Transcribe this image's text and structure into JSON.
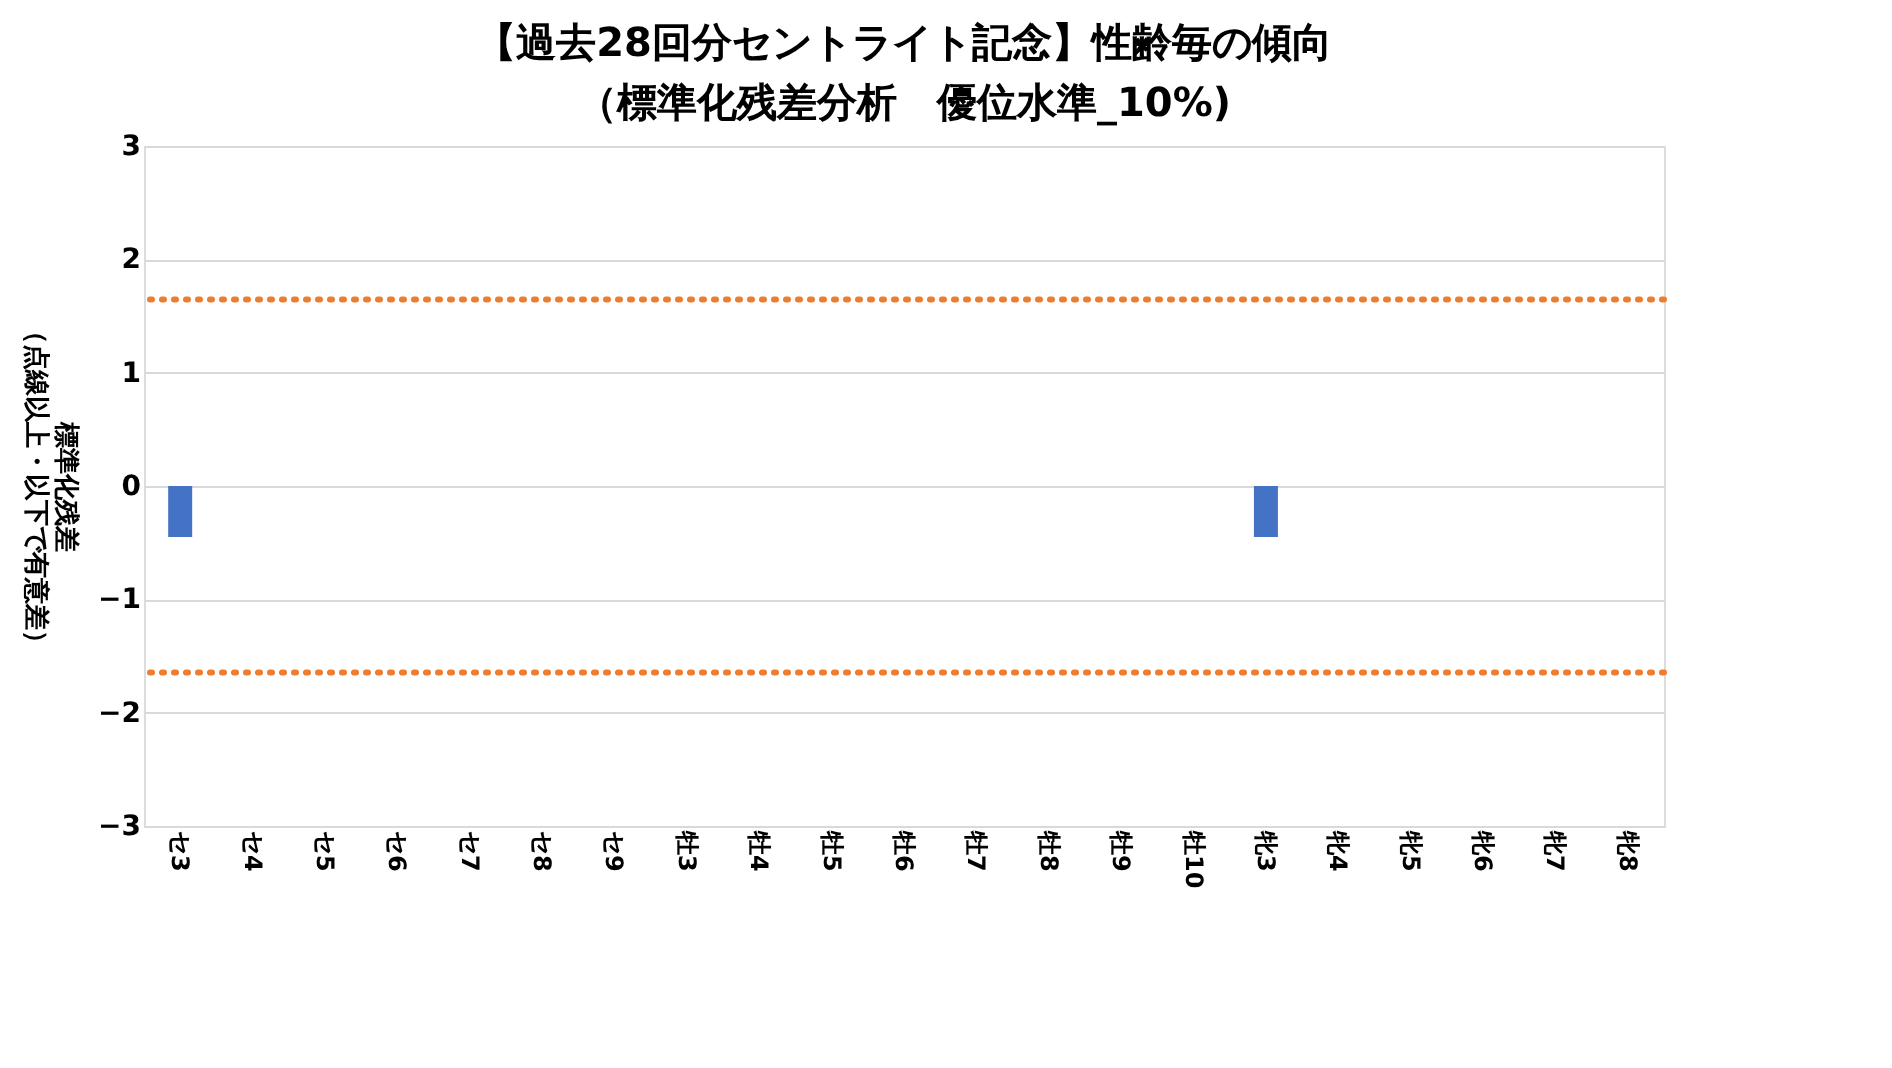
{
  "chart_data": {
    "type": "bar",
    "title": "【過去28回分セントライト記念】性齢毎の傾向",
    "subtitle": "（標準化残差分析　優位水準_10%)",
    "ylabel": "標準化残差（点線以上・以下で有意差）",
    "categories": [
      "セ3",
      "セ4",
      "セ5",
      "セ6",
      "セ7",
      "セ8",
      "セ9",
      "牡3",
      "牡4",
      "牡5",
      "牡6",
      "牡7",
      "牡8",
      "牡9",
      "牡10",
      "牝3",
      "牝4",
      "牝5",
      "牝6",
      "牝7",
      "牝8"
    ],
    "values": [
      -0.45,
      null,
      null,
      null,
      null,
      null,
      null,
      null,
      null,
      null,
      null,
      null,
      null,
      null,
      null,
      -0.45,
      null,
      null,
      null,
      null,
      null
    ],
    "color": "#4472c4",
    "ylim": [
      -3,
      3
    ],
    "yticks": [
      -3,
      -2,
      -1,
      0,
      1,
      2,
      3
    ],
    "grid": "y",
    "ref_lines": [
      {
        "axis": "y",
        "value": 1.645,
        "color": "#ed7d31",
        "line_style": "dotted"
      },
      {
        "axis": "y",
        "value": -1.645,
        "color": "#ed7d31",
        "line_style": "dotted"
      }
    ]
  }
}
